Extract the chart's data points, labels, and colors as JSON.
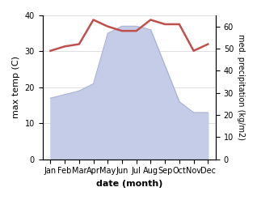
{
  "months": [
    "Jan",
    "Feb",
    "Mar",
    "Apr",
    "May",
    "Jun",
    "Jul",
    "Aug",
    "Sep",
    "Oct",
    "Nov",
    "Dec"
  ],
  "temp_values": [
    17,
    18,
    19,
    21,
    35,
    37,
    37,
    36,
    26,
    16,
    13,
    13
  ],
  "precip_values": [
    49,
    51,
    52,
    63,
    60,
    58,
    58,
    63,
    61,
    61,
    49,
    52
  ],
  "temp_color": "#c5cce8",
  "temp_fill_color": "#c5cce8",
  "precip_color": "#c0504d",
  "ylim_left": [
    0,
    40
  ],
  "ylim_right": [
    0,
    65
  ],
  "yticks_left": [
    0,
    10,
    20,
    30,
    40
  ],
  "yticks_right": [
    0,
    10,
    20,
    30,
    40,
    50,
    60
  ],
  "xlabel": "date (month)",
  "ylabel_left": "max temp (C)",
  "ylabel_right": "med. precipitation (kg/m2)",
  "figsize": [
    3.18,
    2.47
  ],
  "dpi": 100
}
